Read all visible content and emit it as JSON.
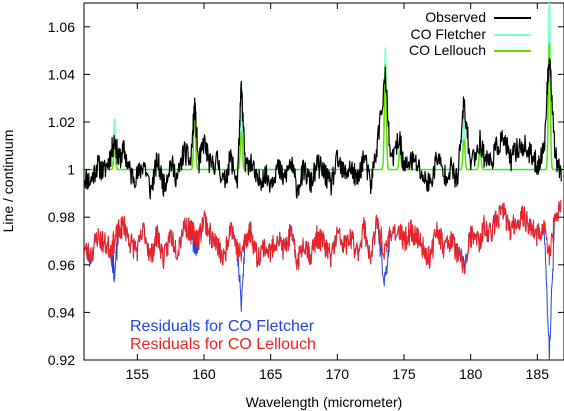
{
  "chart_data": {
    "type": "line",
    "title": "",
    "xlabel": "Wavelength (micrometer)",
    "ylabel": "Line / continuum",
    "xlim": [
      151,
      187
    ],
    "ylim": [
      0.92,
      1.07
    ],
    "xticks": [
      155,
      160,
      165,
      170,
      175,
      180,
      185
    ],
    "xtick_labels": [
      "155",
      "160",
      "165",
      "170",
      "175",
      "180",
      "185"
    ],
    "yticks": [
      0.92,
      0.94,
      0.96,
      0.98,
      1.0,
      1.02,
      1.04,
      1.06
    ],
    "ytick_labels": [
      "0.92",
      "0.94",
      "0.96",
      "0.98",
      "1",
      "1.02",
      "1.04",
      "1.06"
    ],
    "grid": false,
    "legend_placement": "top-right",
    "line_centers_um": [
      153.3,
      159.3,
      162.8,
      173.6,
      174.7,
      179.5,
      180.7,
      185.9
    ],
    "series": [
      {
        "name": "Observed",
        "color": "#000000",
        "x": [
          151.0,
          151.5,
          152.0,
          152.5,
          153.0,
          153.3,
          153.6,
          154.0,
          154.5,
          155.0,
          155.5,
          156.0,
          156.5,
          157.0,
          157.5,
          158.0,
          158.5,
          159.0,
          159.3,
          159.6,
          160.0,
          160.5,
          161.0,
          161.5,
          162.0,
          162.5,
          162.8,
          163.1,
          163.5,
          164.0,
          164.5,
          165.0,
          165.5,
          166.0,
          166.5,
          167.0,
          167.5,
          168.0,
          168.5,
          169.0,
          169.5,
          170.0,
          170.5,
          171.0,
          171.5,
          172.0,
          172.5,
          173.0,
          173.6,
          174.0,
          174.7,
          175.0,
          175.5,
          176.0,
          176.5,
          177.0,
          177.5,
          178.0,
          178.5,
          179.0,
          179.5,
          180.0,
          180.7,
          181.0,
          181.5,
          182.0,
          182.5,
          183.0,
          183.5,
          184.0,
          184.5,
          185.0,
          185.5,
          185.9,
          186.3,
          186.8
        ],
        "y": [
          0.997,
          0.995,
          1.002,
          0.999,
          1.006,
          1.013,
          1.004,
          1.008,
          0.998,
          0.997,
          1.003,
          0.991,
          1.004,
          0.993,
          1.003,
          0.996,
          1.008,
          1.003,
          1.027,
          1.002,
          1.012,
          1.001,
          1.004,
          0.994,
          1.005,
          0.995,
          1.035,
          1.001,
          1.004,
          0.994,
          0.998,
          0.995,
          1.001,
          0.996,
          1.003,
          0.992,
          1.0,
          0.994,
          1.002,
          0.999,
          0.993,
          1.004,
          0.998,
          1.001,
          0.995,
          1.006,
          0.993,
          1.011,
          1.039,
          1.003,
          1.013,
          1.0,
          1.004,
          1.002,
          0.996,
          0.994,
          1.006,
          0.997,
          1.001,
          0.995,
          1.028,
          1.002,
          1.012,
          1.006,
          1.003,
          1.01,
          1.013,
          1.004,
          1.009,
          1.01,
          1.006,
          1.002,
          1.008,
          1.05,
          1.008,
          0.995
        ]
      },
      {
        "name": "CO Fletcher",
        "color": "#7fffd4",
        "peak_amplitudes": [
          0.022,
          0.029,
          0.036,
          0.051,
          0.012,
          0.022,
          0.01,
          0.074
        ]
      },
      {
        "name": "CO Lellouch",
        "color": "#66dd00",
        "peak_amplitudes": [
          0.009,
          0.024,
          0.016,
          0.044,
          0.008,
          0.013,
          0.009,
          0.055
        ]
      },
      {
        "name": "Residuals for CO Fletcher",
        "color": "#2244dd",
        "x": [
          151.0,
          151.5,
          152.0,
          152.5,
          153.0,
          153.3,
          153.6,
          154.0,
          154.5,
          155.0,
          155.5,
          156.0,
          156.5,
          157.0,
          157.5,
          158.0,
          158.5,
          159.0,
          159.3,
          159.6,
          160.0,
          160.5,
          161.0,
          161.5,
          162.0,
          162.5,
          162.8,
          163.1,
          163.5,
          164.0,
          164.5,
          165.0,
          165.5,
          166.0,
          166.5,
          167.0,
          167.5,
          168.0,
          168.5,
          169.0,
          169.5,
          170.0,
          170.5,
          171.0,
          171.5,
          172.0,
          172.5,
          173.0,
          173.6,
          174.0,
          174.7,
          175.0,
          175.5,
          176.0,
          176.5,
          177.0,
          177.5,
          178.0,
          178.5,
          179.0,
          179.5,
          180.0,
          180.7,
          181.0,
          181.5,
          182.0,
          182.5,
          183.0,
          183.5,
          184.0,
          184.5,
          185.0,
          185.5,
          185.9,
          186.3,
          186.8
        ],
        "y": [
          0.967,
          0.963,
          0.972,
          0.969,
          0.967,
          0.956,
          0.974,
          0.977,
          0.969,
          0.966,
          0.975,
          0.963,
          0.973,
          0.962,
          0.973,
          0.966,
          0.977,
          0.974,
          0.968,
          0.97,
          0.98,
          0.972,
          0.968,
          0.962,
          0.978,
          0.966,
          0.943,
          0.971,
          0.974,
          0.963,
          0.968,
          0.965,
          0.972,
          0.966,
          0.973,
          0.961,
          0.97,
          0.964,
          0.972,
          0.969,
          0.963,
          0.973,
          0.968,
          0.971,
          0.965,
          0.976,
          0.963,
          0.978,
          0.951,
          0.975,
          0.973,
          0.97,
          0.974,
          0.972,
          0.966,
          0.963,
          0.976,
          0.967,
          0.971,
          0.965,
          0.96,
          0.972,
          0.969,
          0.976,
          0.973,
          0.98,
          0.982,
          0.974,
          0.979,
          0.98,
          0.976,
          0.972,
          0.977,
          0.922,
          0.978,
          0.987
        ]
      },
      {
        "name": "Residuals for CO Lellouch",
        "color": "#ee2222",
        "x": [
          151.0,
          151.5,
          152.0,
          152.5,
          153.0,
          153.3,
          153.6,
          154.0,
          154.5,
          155.0,
          155.5,
          156.0,
          156.5,
          157.0,
          157.5,
          158.0,
          158.5,
          159.0,
          159.3,
          159.6,
          160.0,
          160.5,
          161.0,
          161.5,
          162.0,
          162.5,
          162.8,
          163.1,
          163.5,
          164.0,
          164.5,
          165.0,
          165.5,
          166.0,
          166.5,
          167.0,
          167.5,
          168.0,
          168.5,
          169.0,
          169.5,
          170.0,
          170.5,
          171.0,
          171.5,
          172.0,
          172.5,
          173.0,
          173.6,
          174.0,
          174.7,
          175.0,
          175.5,
          176.0,
          176.5,
          177.0,
          177.5,
          178.0,
          178.5,
          179.0,
          179.5,
          180.0,
          180.7,
          181.0,
          181.5,
          182.0,
          182.5,
          183.0,
          183.5,
          184.0,
          184.5,
          185.0,
          185.5,
          185.9,
          186.3,
          186.8
        ],
        "y": [
          0.967,
          0.964,
          0.972,
          0.969,
          0.967,
          0.97,
          0.974,
          0.977,
          0.969,
          0.966,
          0.975,
          0.963,
          0.973,
          0.962,
          0.973,
          0.966,
          0.977,
          0.974,
          0.973,
          0.971,
          0.98,
          0.972,
          0.968,
          0.962,
          0.978,
          0.966,
          0.964,
          0.971,
          0.974,
          0.963,
          0.968,
          0.965,
          0.972,
          0.966,
          0.973,
          0.961,
          0.97,
          0.964,
          0.972,
          0.969,
          0.963,
          0.973,
          0.968,
          0.971,
          0.965,
          0.976,
          0.963,
          0.978,
          0.964,
          0.975,
          0.973,
          0.97,
          0.974,
          0.972,
          0.966,
          0.963,
          0.976,
          0.967,
          0.971,
          0.965,
          0.958,
          0.972,
          0.969,
          0.976,
          0.973,
          0.98,
          0.982,
          0.974,
          0.979,
          0.98,
          0.976,
          0.972,
          0.977,
          0.963,
          0.978,
          0.987
        ]
      }
    ],
    "annotations": [
      "Residuals for CO Fletcher",
      "Residuals for CO Lellouch"
    ]
  }
}
